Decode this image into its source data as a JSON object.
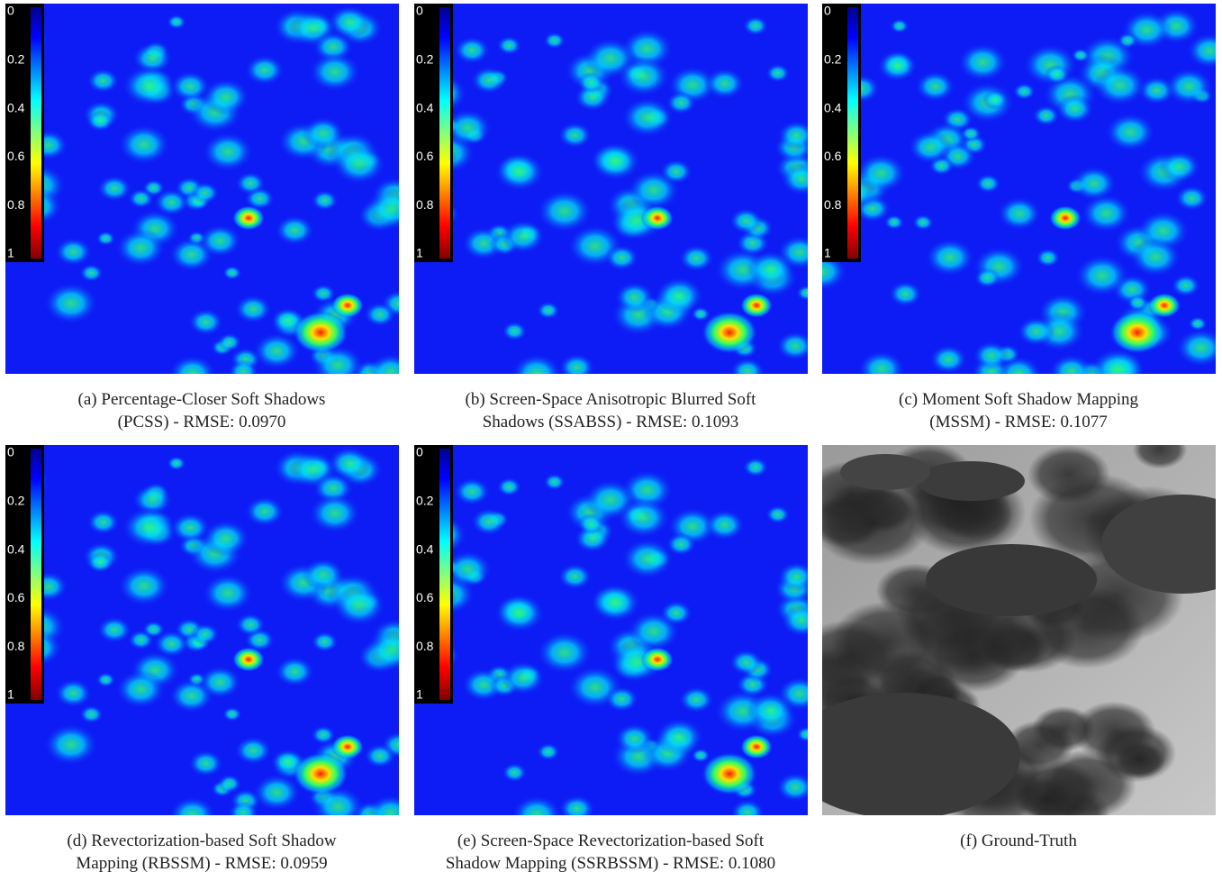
{
  "panels": [
    {
      "kind": "heatmap",
      "caption": [
        "(a) Percentage-Closer Soft Shadows",
        "(PCSS) - RMSE: 0.0970"
      ]
    },
    {
      "kind": "heatmap",
      "caption": [
        "(b) Screen-Space Anisotropic Blurred Soft",
        "Shadows (SSABSS) - RMSE: 0.1093"
      ]
    },
    {
      "kind": "heatmap",
      "caption": [
        "(c) Moment Soft Shadow Mapping",
        "(MSSM) - RMSE: 0.1077"
      ]
    },
    {
      "kind": "heatmap",
      "caption": [
        "(d) Revectorization-based Soft Shadow",
        "Mapping (RBSSM) - RMSE: 0.0959"
      ]
    },
    {
      "kind": "heatmap",
      "caption": [
        "(e) Screen-Space Revectorization-based Soft",
        "Shadow Mapping (SSRBSSM) - RMSE: 0.1080"
      ]
    },
    {
      "kind": "photo",
      "caption": [
        "(f) Ground-Truth"
      ]
    }
  ],
  "colorbar": {
    "labels": [
      "0",
      "0.2",
      "0.4",
      "0.6",
      "0.8",
      "1"
    ]
  }
}
